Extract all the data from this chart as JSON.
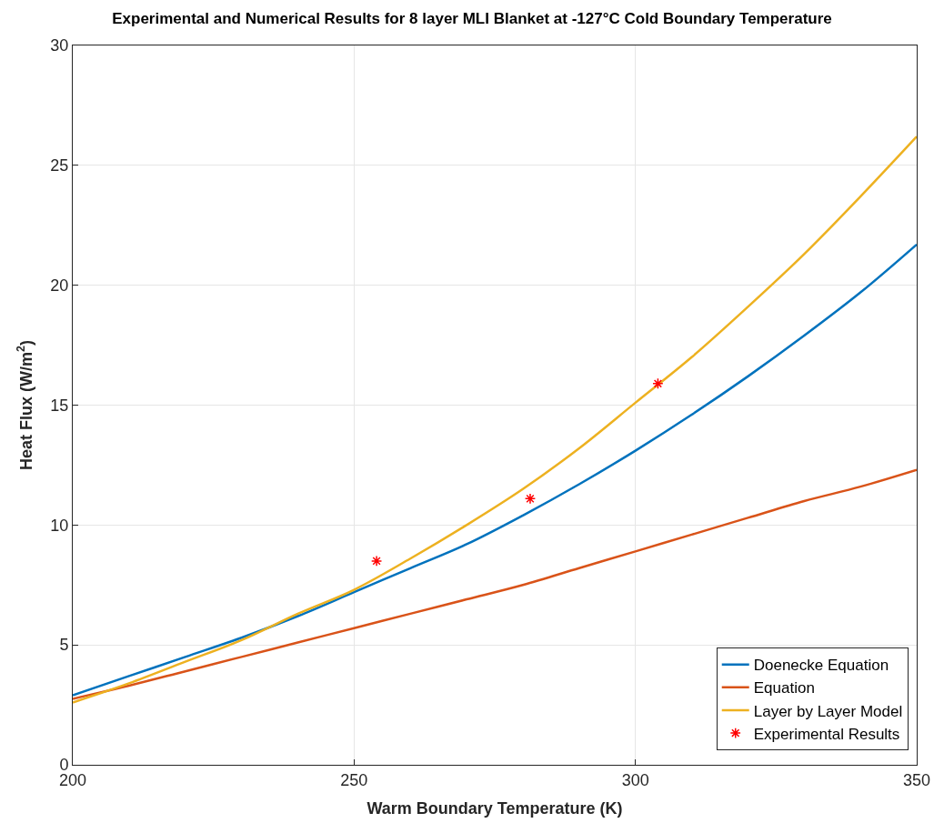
{
  "chart_data": {
    "type": "line",
    "title": "Experimental and Numerical Results for 8 layer MLI Blanket at -127°C Cold Boundary Temperature",
    "xlabel": "Warm Boundary Temperature (K)",
    "ylabel": "Heat Flux (W/m$^{2}$)",
    "xlim": [
      200,
      350
    ],
    "xticks": [
      200,
      250,
      300,
      350
    ],
    "ylim": [
      0,
      30
    ],
    "yticks": [
      0,
      5,
      10,
      15,
      20,
      25,
      30
    ],
    "grid": true,
    "legend": "bottom right",
    "line_style": "solid",
    "series": [
      {
        "name": "Doenecke Equation",
        "color": "#0072bd",
        "marker": "none",
        "x": [
          200,
          210,
          220,
          230,
          240,
          250,
          260,
          270,
          280,
          290,
          300,
          310,
          320,
          330,
          340,
          350
        ],
        "values": [
          2.9,
          3.7,
          4.5,
          5.3,
          6.2,
          7.2,
          8.2,
          9.2,
          10.4,
          11.7,
          13.1,
          14.6,
          16.2,
          17.9,
          19.7,
          21.7
        ]
      },
      {
        "name": "Equation",
        "color": "#d95319",
        "marker": "none",
        "x": [
          200,
          210,
          220,
          230,
          240,
          250,
          260,
          270,
          280,
          290,
          300,
          310,
          320,
          330,
          340,
          350
        ],
        "values": [
          2.75,
          3.3,
          3.9,
          4.5,
          5.1,
          5.7,
          6.3,
          6.9,
          7.5,
          8.2,
          8.9,
          9.6,
          10.3,
          11.0,
          11.6,
          12.3
        ]
      },
      {
        "name": "Layer by Layer Model",
        "color": "#edb120",
        "marker": "none",
        "x": [
          200,
          210,
          220,
          230,
          240,
          250,
          260,
          270,
          280,
          290,
          300,
          310,
          320,
          330,
          340,
          350
        ],
        "values": [
          2.6,
          3.4,
          4.3,
          5.2,
          6.3,
          7.3,
          8.6,
          10.0,
          11.5,
          13.2,
          15.1,
          17.0,
          19.1,
          21.3,
          23.7,
          26.2
        ]
      },
      {
        "name": "Experimental Results",
        "type": "scatter",
        "color": "#ff0000",
        "marker": "cross",
        "x": [
          254,
          281.3,
          304
        ],
        "values": [
          8.5,
          11.1,
          15.9
        ]
      }
    ]
  }
}
